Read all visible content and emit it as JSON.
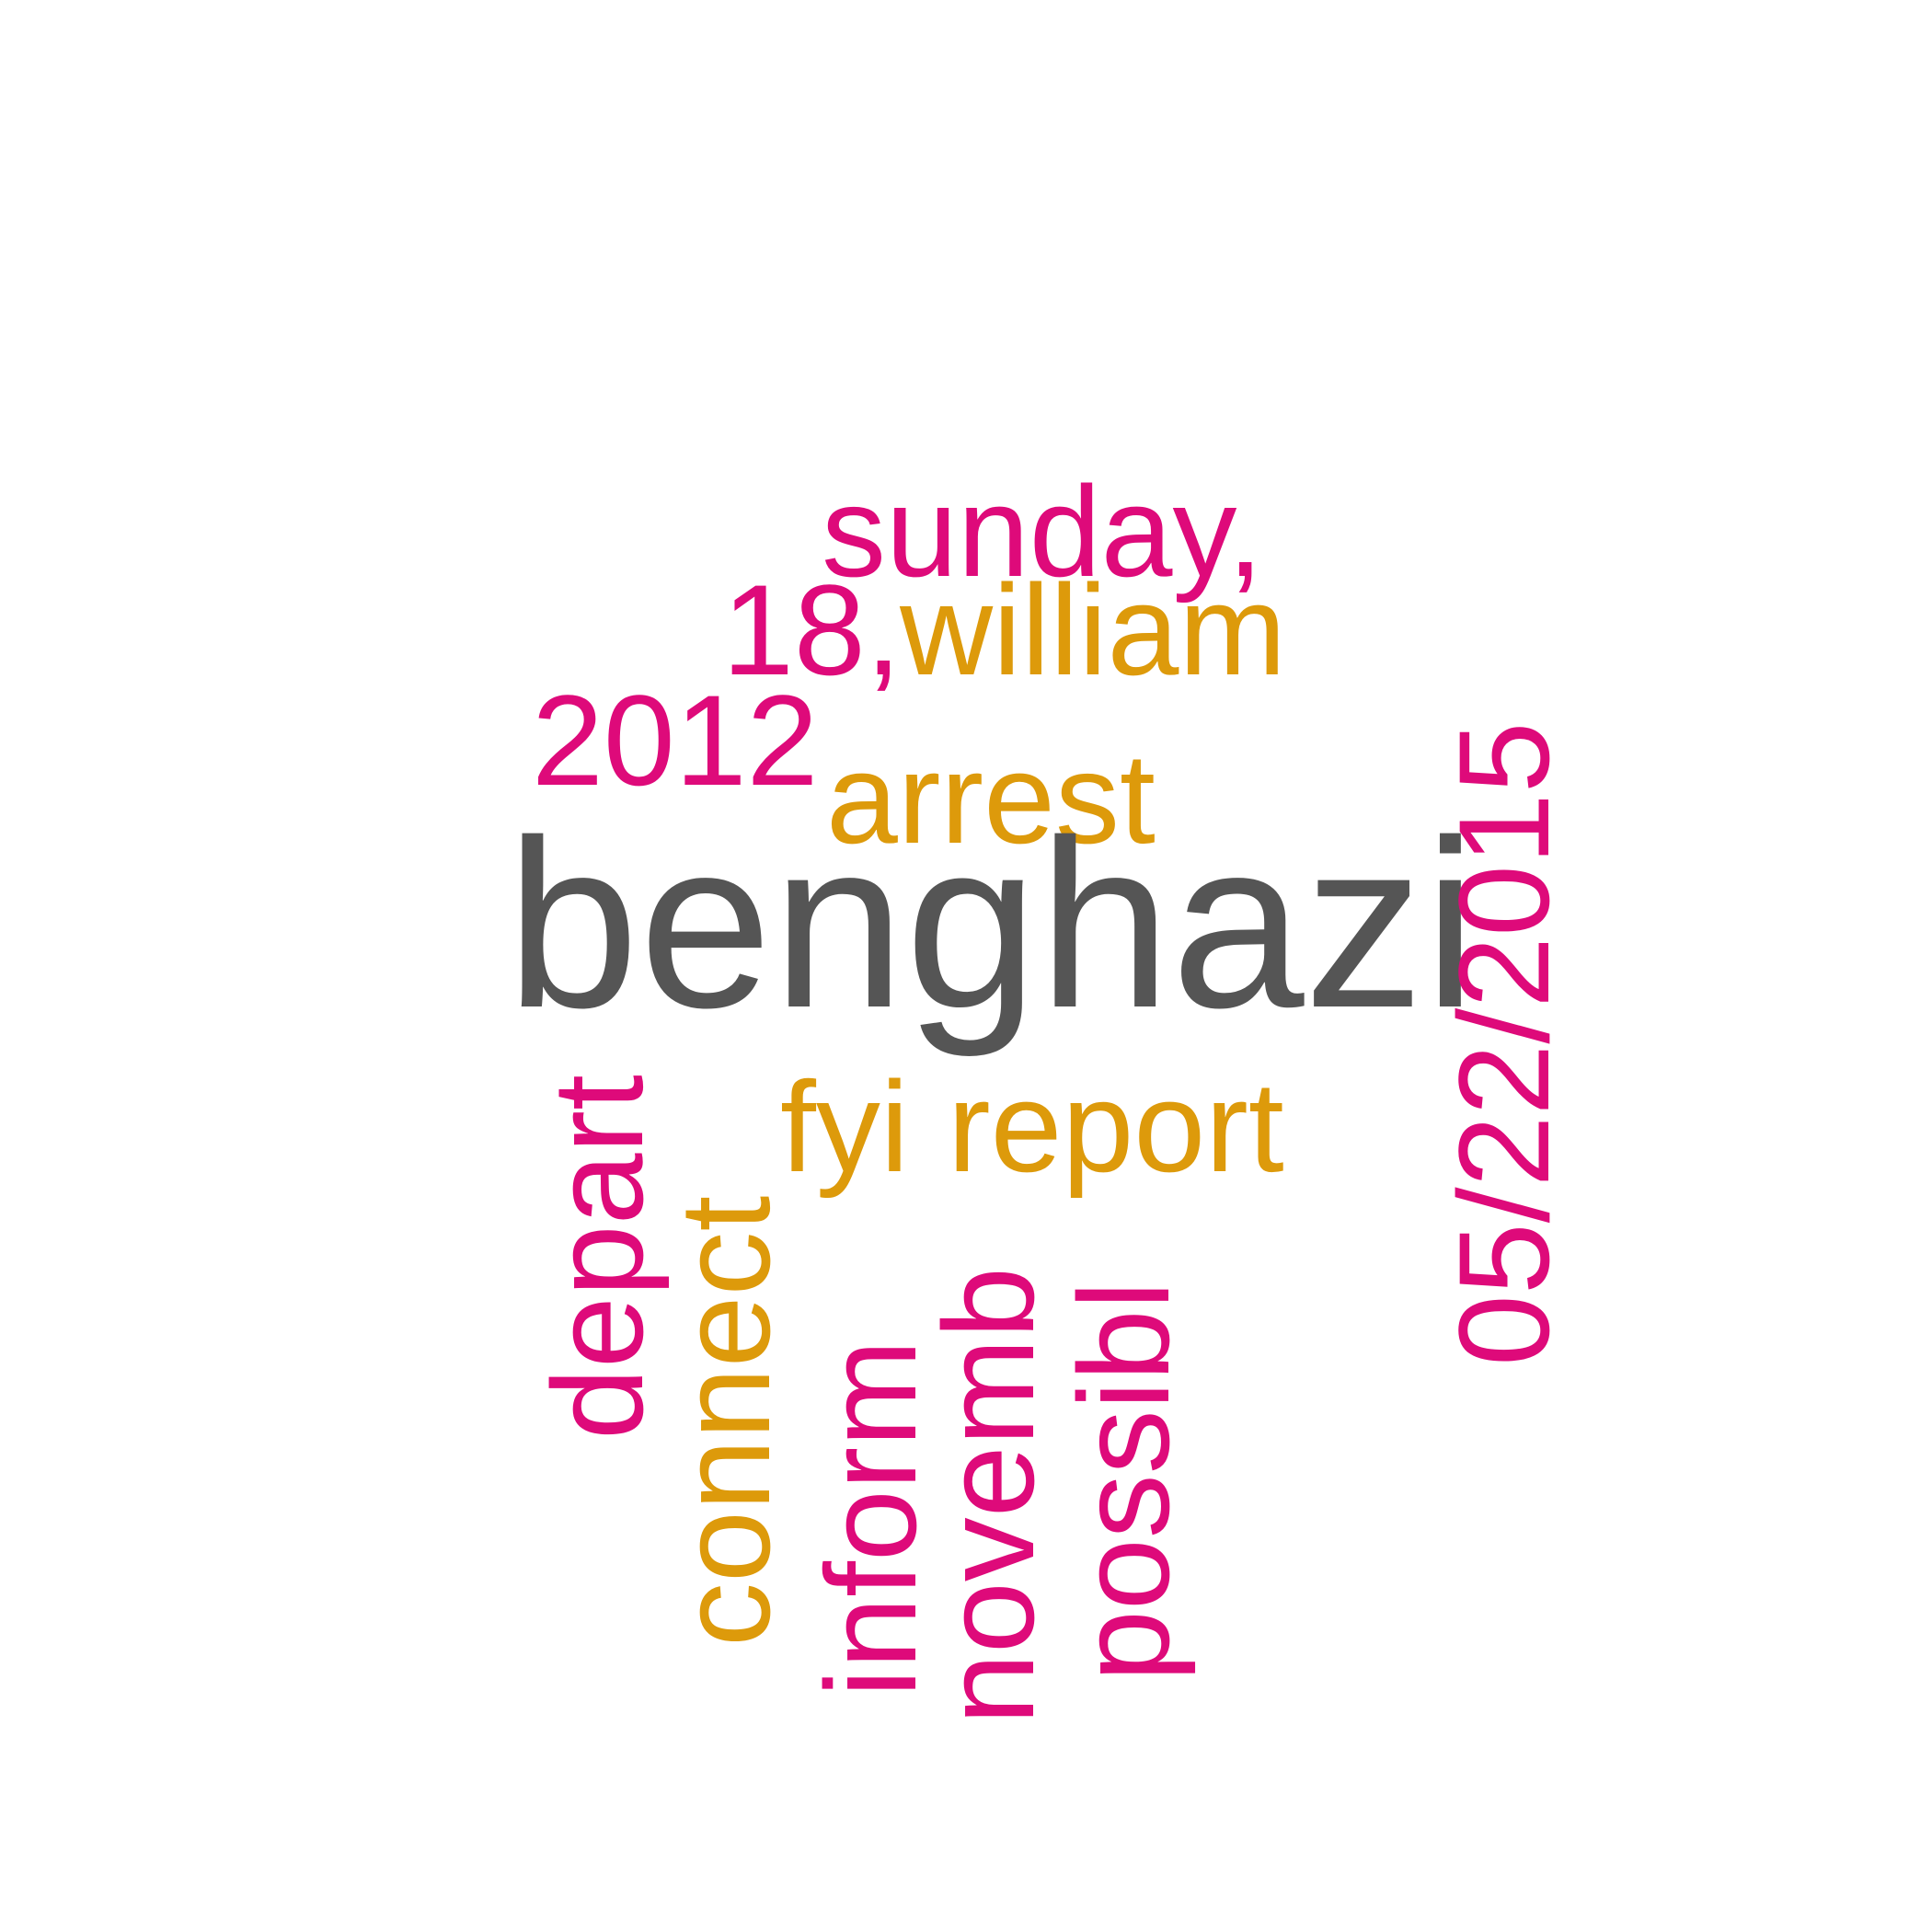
{
  "colors": {
    "magenta": "#de0a7a",
    "gold": "#dd9a0b",
    "gray": "#555555"
  },
  "words": {
    "benghazi": "benghazi",
    "sunday": "sunday,",
    "eighteen": "18,",
    "william": "william",
    "year": "2012",
    "arrest": "arrest",
    "date": "05/22/2015",
    "connect": "connect",
    "depart": "depart",
    "fyi": "fyi",
    "report": "report",
    "inform": "inform",
    "novemb": "novemb",
    "possibl": "possibl"
  }
}
